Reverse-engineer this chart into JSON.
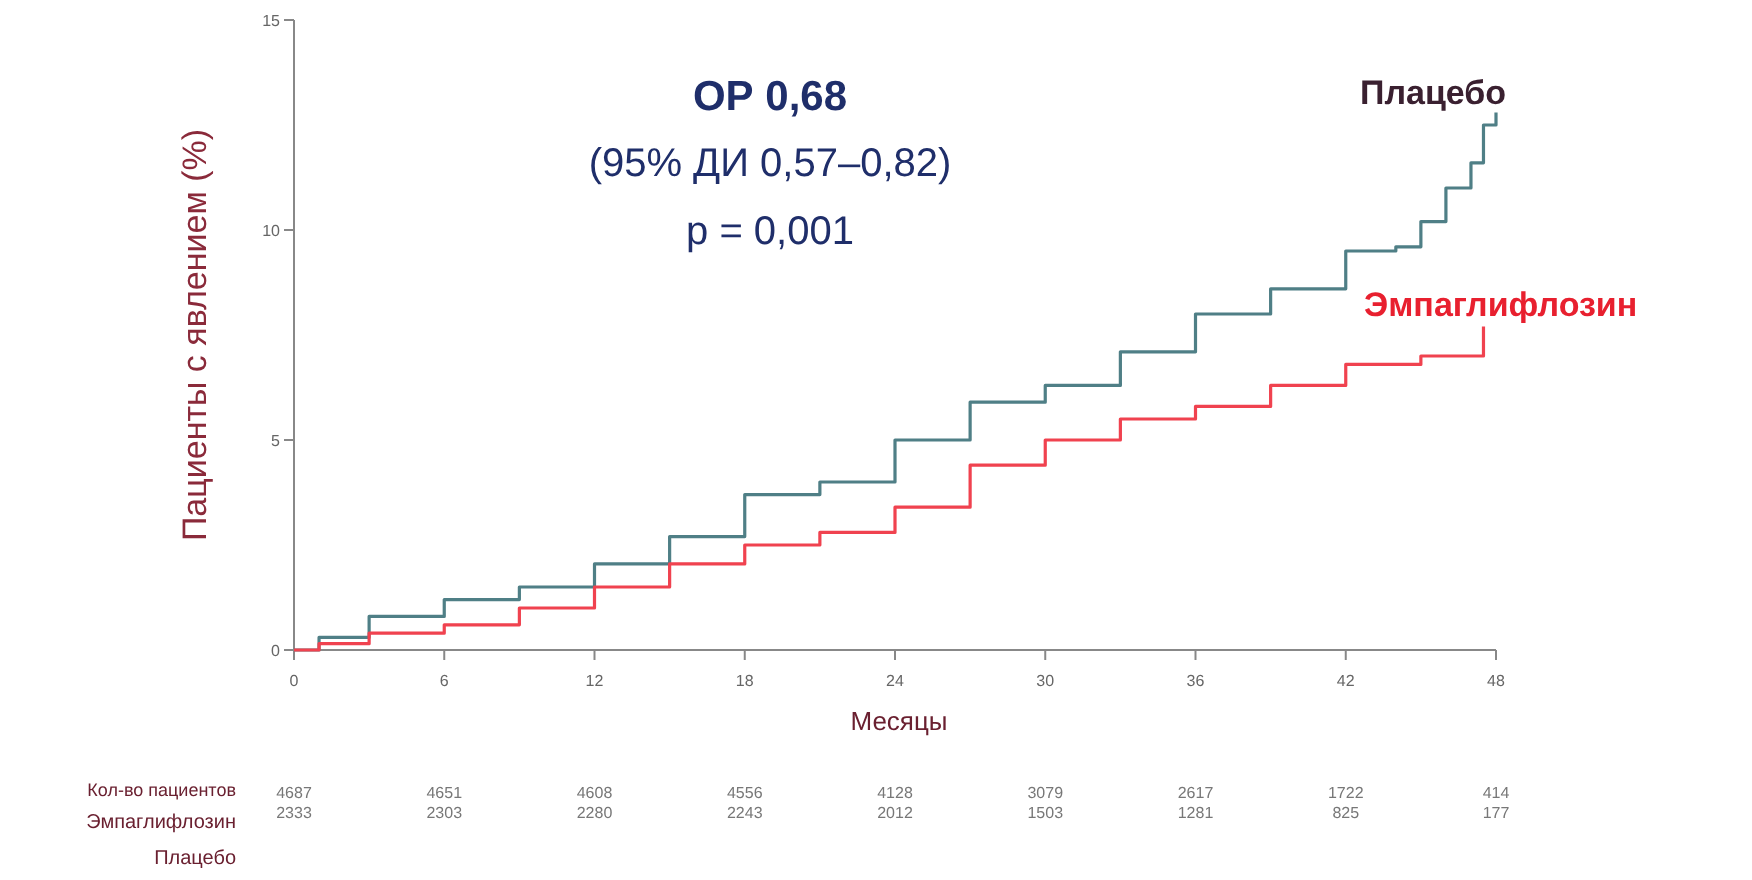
{
  "chart_data": {
    "type": "step",
    "xlabel": "Месяцы",
    "ylabel": "Пациенты с явлением (%)",
    "xlim": [
      0,
      48
    ],
    "xticks": [
      0,
      6,
      12,
      18,
      24,
      30,
      36,
      42,
      48
    ],
    "ylim": [
      0,
      15
    ],
    "yticks": [
      0,
      5,
      10,
      15
    ],
    "grid": false,
    "series": [
      {
        "name": "Плацебо",
        "color": "#4f7f86",
        "x": [
          0,
          1,
          3,
          6,
          9,
          12,
          15,
          18,
          21,
          24,
          27,
          30,
          33,
          36,
          39,
          42,
          44,
          45,
          46,
          47,
          47.5,
          48
        ],
        "values": [
          0,
          0.3,
          0.8,
          1.2,
          1.5,
          2.05,
          2.7,
          3.7,
          4.0,
          5.0,
          5.9,
          6.3,
          7.1,
          8.0,
          8.6,
          9.5,
          9.6,
          10.2,
          11.0,
          11.6,
          12.5,
          12.8
        ]
      },
      {
        "name": "Эмпаглифлозин",
        "color": "#f0424f",
        "x": [
          0,
          1,
          3,
          6,
          9,
          12,
          15,
          18,
          21,
          24,
          27,
          30,
          33,
          36,
          39,
          42,
          45,
          47.5
        ],
        "values": [
          0,
          0.15,
          0.4,
          0.6,
          1.0,
          1.5,
          2.05,
          2.5,
          2.8,
          3.4,
          4.4,
          5.0,
          5.5,
          5.8,
          6.3,
          6.8,
          7.0,
          7.7
        ]
      }
    ],
    "annotations": [
      "ОР 0,68",
      "(95% ДИ 0,57–0,82)",
      "p = 0,001",
      "Кол-во пациентов",
      "Эмпаглифлозин",
      "Плацебо",
      "4687",
      "4651",
      "4608",
      "4556",
      "4128",
      "3079",
      "2617",
      "1722",
      "414",
      "2333",
      "2303",
      "2280",
      "2243",
      "2012",
      "1503",
      "1281",
      "825",
      "177"
    ]
  }
}
